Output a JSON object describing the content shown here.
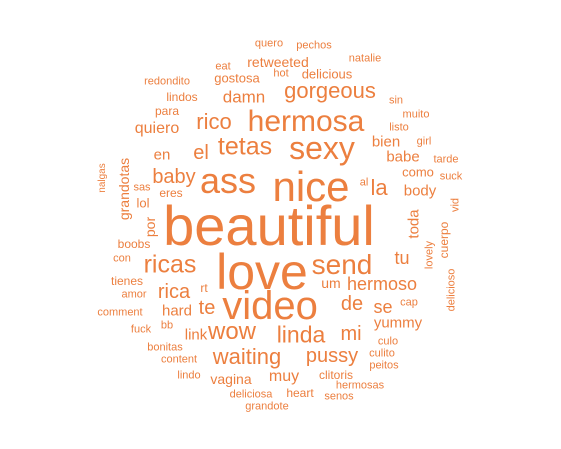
{
  "color": "#ec7f3f",
  "words": [
    {
      "text": "beautiful"
    },
    {
      "text": "love"
    },
    {
      "text": "nice"
    },
    {
      "text": "video"
    },
    {
      "text": "ass"
    },
    {
      "text": "sexy"
    },
    {
      "text": "hermosa"
    },
    {
      "text": "send"
    },
    {
      "text": "ricas"
    },
    {
      "text": "tetas"
    },
    {
      "text": "gorgeous"
    },
    {
      "text": "wow"
    },
    {
      "text": "linda"
    },
    {
      "text": "waiting"
    },
    {
      "text": "rico"
    },
    {
      "text": "pussy"
    },
    {
      "text": "rica"
    },
    {
      "text": "baby"
    },
    {
      "text": "la"
    },
    {
      "text": "mi"
    },
    {
      "text": "de"
    },
    {
      "text": "te"
    },
    {
      "text": "el"
    },
    {
      "text": "hermoso"
    },
    {
      "text": "tu"
    },
    {
      "text": "se"
    },
    {
      "text": "damn"
    },
    {
      "text": "quiero"
    },
    {
      "text": "muy"
    },
    {
      "text": "yummy"
    },
    {
      "text": "body"
    },
    {
      "text": "babe"
    },
    {
      "text": "bien"
    },
    {
      "text": "retweeted"
    },
    {
      "text": "en"
    },
    {
      "text": "hard"
    },
    {
      "text": "link"
    },
    {
      "text": "por"
    },
    {
      "text": "toda"
    },
    {
      "text": "vagina"
    },
    {
      "text": "grandotas"
    },
    {
      "text": "lol"
    },
    {
      "text": "eres"
    },
    {
      "text": "um"
    },
    {
      "text": "gostosa"
    },
    {
      "text": "delicious"
    },
    {
      "text": "lindos"
    },
    {
      "text": "para"
    },
    {
      "text": "redondito"
    },
    {
      "text": "eat"
    },
    {
      "text": "hot"
    },
    {
      "text": "quero"
    },
    {
      "text": "pechos"
    },
    {
      "text": "natalie"
    },
    {
      "text": "sin"
    },
    {
      "text": "muito"
    },
    {
      "text": "listo"
    },
    {
      "text": "girl"
    },
    {
      "text": "tarde"
    },
    {
      "text": "como"
    },
    {
      "text": "suck"
    },
    {
      "text": "al"
    },
    {
      "text": "vid"
    },
    {
      "text": "cuerpo"
    },
    {
      "text": "lovely"
    },
    {
      "text": "delicioso"
    },
    {
      "text": "cap"
    },
    {
      "text": "culo"
    },
    {
      "text": "culito"
    },
    {
      "text": "peitos"
    },
    {
      "text": "clitoris"
    },
    {
      "text": "hermosas"
    },
    {
      "text": "senos"
    },
    {
      "text": "deliciosa"
    },
    {
      "text": "heart"
    },
    {
      "text": "grandote"
    },
    {
      "text": "lindo"
    },
    {
      "text": "content"
    },
    {
      "text": "bonitas"
    },
    {
      "text": "fuck"
    },
    {
      "text": "bb"
    },
    {
      "text": "comment"
    },
    {
      "text": "amor"
    },
    {
      "text": "tienes"
    },
    {
      "text": "con"
    },
    {
      "text": "boobs"
    },
    {
      "text": "sas"
    },
    {
      "text": "nalgas"
    },
    {
      "text": "rt"
    }
  ]
}
